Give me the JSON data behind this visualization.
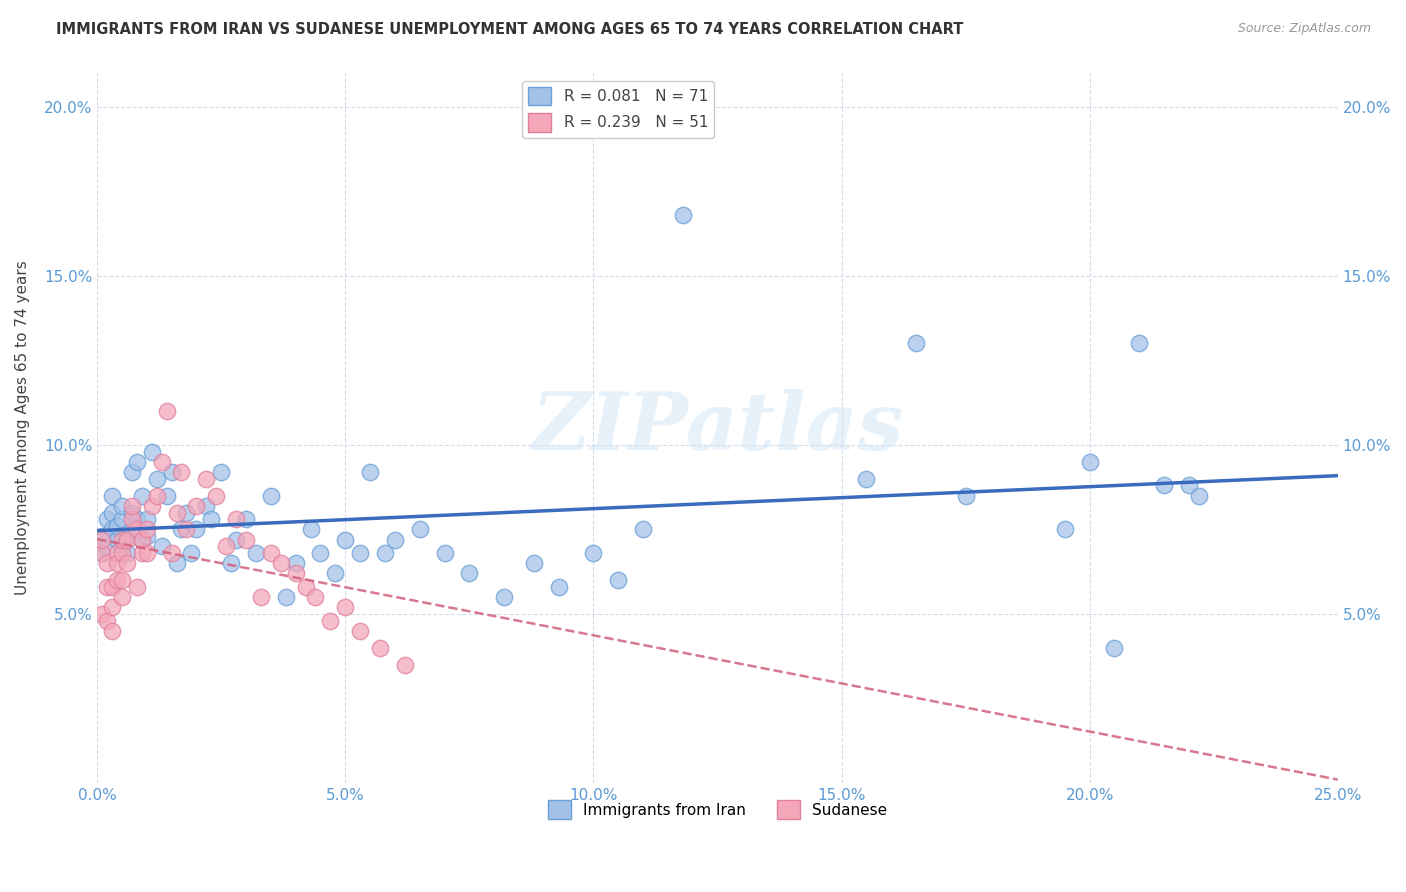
{
  "title": "IMMIGRANTS FROM IRAN VS SUDANESE UNEMPLOYMENT AMONG AGES 65 TO 74 YEARS CORRELATION CHART",
  "source": "Source: ZipAtlas.com",
  "ylabel": "Unemployment Among Ages 65 to 74 years",
  "xlim": [
    0.0,
    0.25
  ],
  "ylim": [
    0.0,
    0.21
  ],
  "blue_color": "#a4c2e8",
  "pink_color": "#f4a7b9",
  "trend_blue": "#3a6bbf",
  "trend_pink": "#d44060",
  "trend_pink_dashed": "#d0607a",
  "watermark": "ZIPatlas",
  "background_color": "#ffffff",
  "iran_x": [
    0.001,
    0.001,
    0.002,
    0.002,
    0.003,
    0.003,
    0.003,
    0.004,
    0.004,
    0.005,
    0.005,
    0.005,
    0.006,
    0.006,
    0.007,
    0.007,
    0.007,
    0.008,
    0.008,
    0.009,
    0.009,
    0.01,
    0.01,
    0.011,
    0.012,
    0.013,
    0.014,
    0.015,
    0.016,
    0.017,
    0.018,
    0.019,
    0.02,
    0.022,
    0.023,
    0.025,
    0.027,
    0.028,
    0.03,
    0.032,
    0.035,
    0.038,
    0.04,
    0.043,
    0.045,
    0.048,
    0.05,
    0.053,
    0.055,
    0.058,
    0.06,
    0.065,
    0.07,
    0.075,
    0.082,
    0.088,
    0.093,
    0.1,
    0.105,
    0.11,
    0.118,
    0.155,
    0.165,
    0.175,
    0.195,
    0.2,
    0.205,
    0.21,
    0.215,
    0.22,
    0.222
  ],
  "iran_y": [
    0.068,
    0.073,
    0.07,
    0.078,
    0.075,
    0.08,
    0.085,
    0.072,
    0.076,
    0.07,
    0.078,
    0.082,
    0.068,
    0.073,
    0.092,
    0.075,
    0.08,
    0.095,
    0.078,
    0.085,
    0.072,
    0.078,
    0.073,
    0.098,
    0.09,
    0.07,
    0.085,
    0.092,
    0.065,
    0.075,
    0.08,
    0.068,
    0.075,
    0.082,
    0.078,
    0.092,
    0.065,
    0.072,
    0.078,
    0.068,
    0.085,
    0.055,
    0.065,
    0.075,
    0.068,
    0.062,
    0.072,
    0.068,
    0.092,
    0.068,
    0.072,
    0.075,
    0.068,
    0.062,
    0.055,
    0.065,
    0.058,
    0.068,
    0.06,
    0.075,
    0.168,
    0.09,
    0.13,
    0.085,
    0.075,
    0.095,
    0.04,
    0.13,
    0.088,
    0.088,
    0.085
  ],
  "sudan_x": [
    0.001,
    0.001,
    0.001,
    0.002,
    0.002,
    0.002,
    0.003,
    0.003,
    0.003,
    0.004,
    0.004,
    0.004,
    0.005,
    0.005,
    0.005,
    0.005,
    0.006,
    0.006,
    0.007,
    0.007,
    0.008,
    0.008,
    0.009,
    0.009,
    0.01,
    0.01,
    0.011,
    0.012,
    0.013,
    0.014,
    0.015,
    0.016,
    0.017,
    0.018,
    0.02,
    0.022,
    0.024,
    0.026,
    0.028,
    0.03,
    0.033,
    0.035,
    0.037,
    0.04,
    0.042,
    0.044,
    0.047,
    0.05,
    0.053,
    0.057,
    0.062
  ],
  "sudan_y": [
    0.068,
    0.072,
    0.05,
    0.065,
    0.058,
    0.048,
    0.058,
    0.052,
    0.045,
    0.068,
    0.065,
    0.06,
    0.068,
    0.072,
    0.06,
    0.055,
    0.065,
    0.072,
    0.078,
    0.082,
    0.075,
    0.058,
    0.068,
    0.072,
    0.075,
    0.068,
    0.082,
    0.085,
    0.095,
    0.11,
    0.068,
    0.08,
    0.092,
    0.075,
    0.082,
    0.09,
    0.085,
    0.07,
    0.078,
    0.072,
    0.055,
    0.068,
    0.065,
    0.062,
    0.058,
    0.055,
    0.048,
    0.052,
    0.045,
    0.04,
    0.035
  ]
}
